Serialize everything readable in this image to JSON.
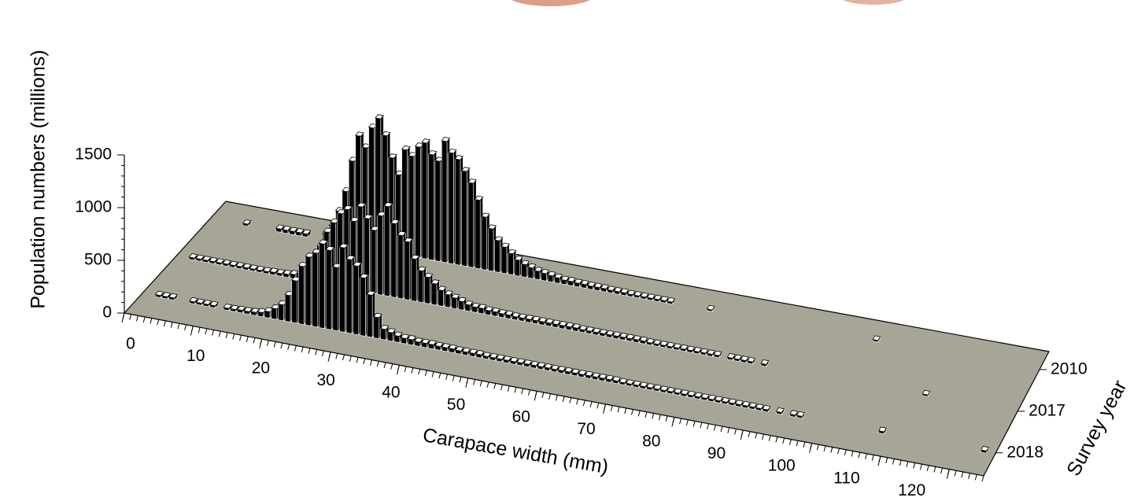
{
  "chart_data": {
    "type": "bar3d",
    "y_label": "Population numbers (millions)",
    "x_label": "Carapace width (mm)",
    "z_label": "Survey year",
    "x": [
      0,
      1,
      2,
      3,
      4,
      5,
      6,
      7,
      8,
      9,
      10,
      11,
      12,
      13,
      14,
      15,
      16,
      17,
      18,
      19,
      20,
      21,
      22,
      23,
      24,
      25,
      26,
      27,
      28,
      29,
      30,
      31,
      32,
      33,
      34,
      35,
      36,
      37,
      38,
      39,
      40,
      41,
      42,
      43,
      44,
      45,
      46,
      47,
      48,
      49,
      50,
      51,
      52,
      53,
      54,
      55,
      56,
      57,
      58,
      59,
      60,
      61,
      62,
      63,
      64,
      65,
      66,
      67,
      68,
      69,
      70,
      71,
      72,
      73,
      74,
      75,
      76,
      77,
      78,
      79,
      80,
      81,
      82,
      83,
      84,
      85,
      86,
      87,
      88,
      89,
      90,
      91,
      92,
      93,
      94,
      95,
      96,
      97,
      98,
      99,
      100,
      101,
      102,
      103,
      104,
      105,
      106,
      107,
      108,
      109,
      110,
      111,
      112,
      113,
      114,
      115,
      116,
      117,
      118,
      119,
      120,
      121,
      122,
      123,
      124
    ],
    "xlim": [
      0,
      125
    ],
    "xticks": [
      0,
      10,
      20,
      30,
      40,
      50,
      60,
      70,
      80,
      90,
      100,
      110,
      120
    ],
    "ylim": [
      0,
      1500
    ],
    "yticks": [
      0,
      500,
      1000,
      1500
    ],
    "floor_color": "#a6a596",
    "series": [
      {
        "name": "2010",
        "color": "#000000",
        "values": [
          0,
          0,
          0,
          0,
          0,
          20,
          0,
          0,
          0,
          0,
          30,
          30,
          30,
          30,
          30,
          0,
          0,
          60,
          150,
          300,
          500,
          800,
          1050,
          950,
          1150,
          1250,
          1100,
          900,
          750,
          1000,
          950,
          1050,
          1100,
          1000,
          950,
          1150,
          1050,
          1000,
          900,
          800,
          650,
          500,
          400,
          300,
          250,
          200,
          150,
          120,
          100,
          80,
          70,
          60,
          50,
          40,
          40,
          35,
          35,
          30,
          30,
          30,
          25,
          25,
          25,
          20,
          20,
          20,
          20,
          20,
          20,
          20,
          0,
          0,
          0,
          0,
          0,
          15,
          0,
          0,
          0,
          0,
          0,
          0,
          0,
          0,
          0,
          0,
          0,
          0,
          0,
          0,
          0,
          0,
          0,
          0,
          0,
          0,
          0,
          0,
          0,
          0,
          15,
          0,
          0,
          0,
          0,
          0,
          0,
          0,
          0,
          0,
          0,
          0,
          0,
          0,
          0,
          0,
          0,
          0,
          0,
          0,
          0,
          0,
          0,
          0,
          0
        ]
      },
      {
        "name": "2017",
        "color": "#000000",
        "values": [
          0,
          0,
          20,
          20,
          20,
          20,
          20,
          20,
          20,
          20,
          20,
          20,
          20,
          20,
          25,
          25,
          30,
          40,
          60,
          100,
          200,
          350,
          500,
          600,
          700,
          750,
          650,
          800,
          700,
          600,
          750,
          850,
          700,
          600,
          550,
          400,
          300,
          250,
          200,
          150,
          120,
          100,
          80,
          60,
          50,
          50,
          40,
          40,
          35,
          35,
          30,
          30,
          30,
          30,
          30,
          30,
          30,
          30,
          30,
          30,
          25,
          25,
          25,
          25,
          25,
          25,
          25,
          25,
          25,
          25,
          20,
          20,
          20,
          20,
          20,
          20,
          20,
          20,
          20,
          20,
          20,
          0,
          20,
          20,
          20,
          20,
          0,
          20,
          0,
          0,
          0,
          0,
          0,
          0,
          0,
          0,
          0,
          0,
          0,
          0,
          0,
          0,
          0,
          0,
          0,
          0,
          0,
          0,
          0,
          0,
          0,
          15,
          0,
          0,
          0,
          0,
          0,
          0,
          0,
          0,
          0,
          0,
          0,
          0,
          0
        ]
      },
      {
        "name": "2018",
        "color": "#000000",
        "values": [
          0,
          0,
          20,
          20,
          20,
          0,
          0,
          20,
          20,
          20,
          20,
          0,
          20,
          20,
          25,
          25,
          30,
          40,
          60,
          100,
          150,
          250,
          400,
          550,
          650,
          700,
          800,
          750,
          600,
          800,
          700,
          650,
          550,
          400,
          200,
          100,
          80,
          60,
          50,
          50,
          40,
          40,
          40,
          35,
          35,
          35,
          30,
          30,
          30,
          30,
          25,
          25,
          25,
          25,
          25,
          25,
          25,
          25,
          25,
          25,
          25,
          25,
          25,
          25,
          25,
          25,
          25,
          25,
          25,
          25,
          20,
          20,
          20,
          20,
          20,
          20,
          20,
          20,
          20,
          20,
          20,
          20,
          20,
          20,
          20,
          20,
          20,
          20,
          20,
          20,
          20,
          20,
          0,
          20,
          0,
          20,
          20,
          0,
          0,
          0,
          0,
          0,
          0,
          0,
          0,
          0,
          0,
          0,
          20,
          0,
          0,
          0,
          0,
          0,
          0,
          0,
          0,
          0,
          0,
          0,
          0,
          0,
          0,
          20,
          0
        ]
      }
    ]
  }
}
